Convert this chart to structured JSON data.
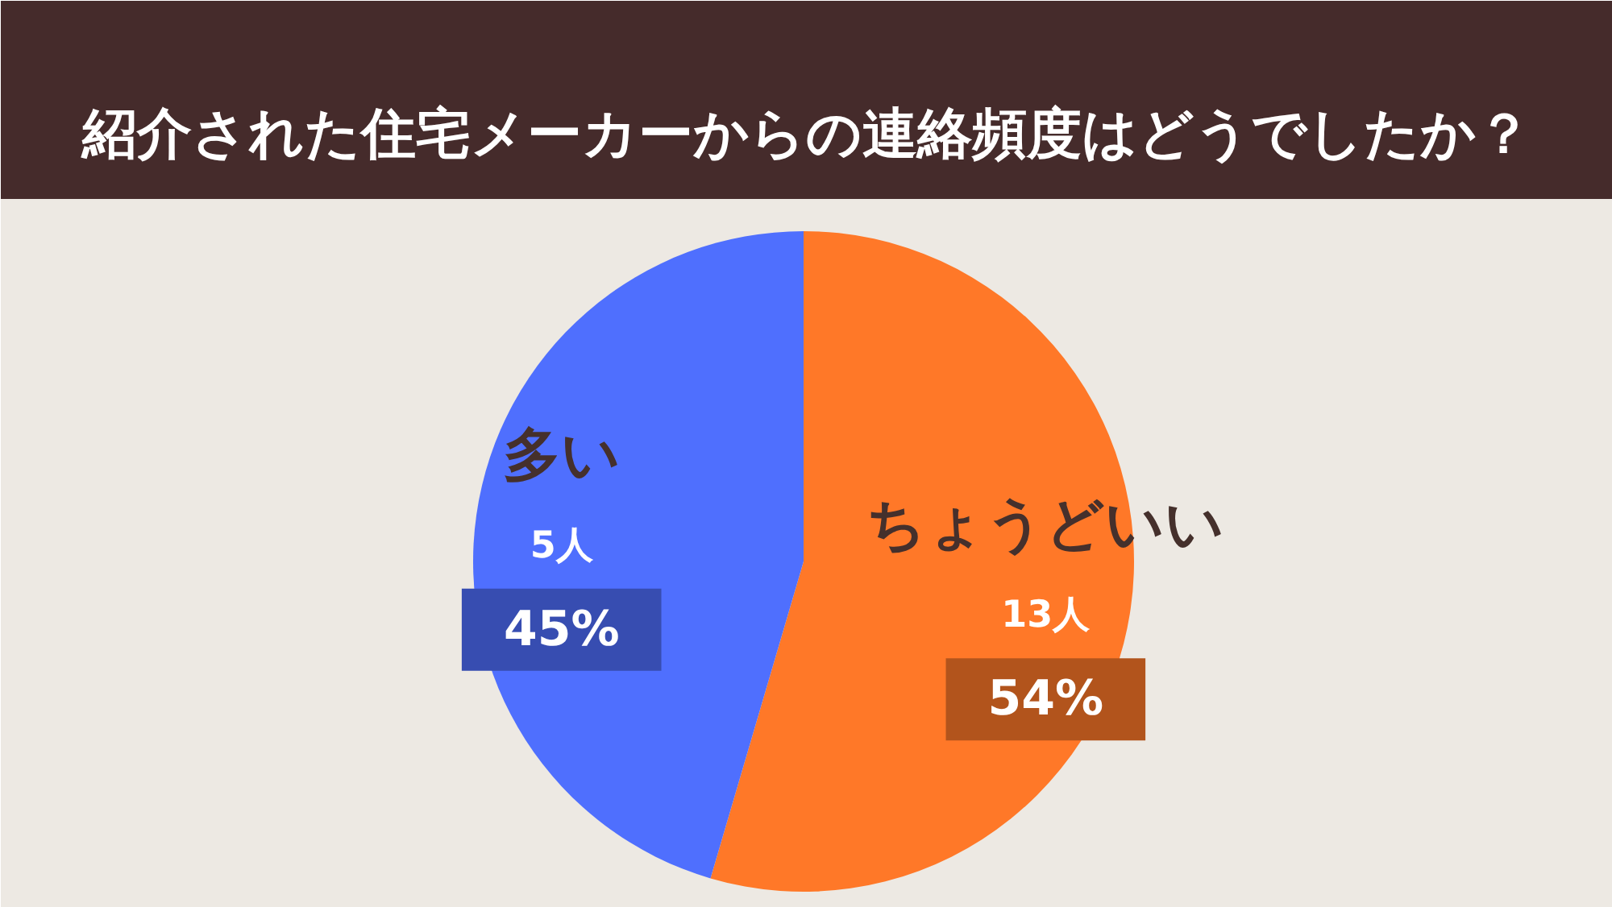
{
  "chart_data": {
    "type": "pie",
    "title": "紹介された住宅メーカーからの連絡頻度はどうでしたか？",
    "categories": [
      "ちょうどいい",
      "多い"
    ],
    "values": [
      54,
      45
    ],
    "colors": [
      "#ff7828",
      "#4f6ffe"
    ],
    "value_labels": [
      "54%",
      "45%"
    ],
    "annotations": [
      {
        "text": "13人",
        "x": "ちょうどいい"
      },
      {
        "text": "5人",
        "x": "多い"
      }
    ]
  }
}
